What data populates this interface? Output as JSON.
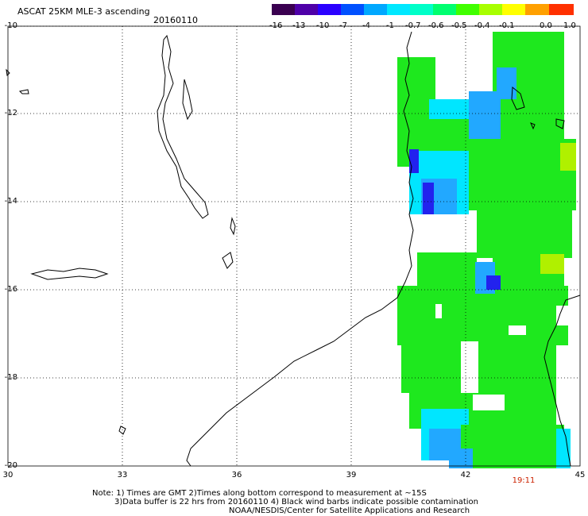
{
  "header": {
    "title": "ASCAT 25KM MLE-3 ascending",
    "date": "20160110"
  },
  "colorbar": {
    "labels": [
      "-16",
      "-13",
      "-10",
      "-7",
      "-4",
      "-1",
      "-0.7",
      "-0.6",
      "-0.5",
      "-0.4",
      "-0.1",
      "0.0",
      "1.0"
    ],
    "colors": [
      "#3a0050",
      "#4e00a8",
      "#2a00ff",
      "#0050ff",
      "#00a8ff",
      "#00e8ff",
      "#00ffc8",
      "#00ff70",
      "#40ff00",
      "#a8ff00",
      "#ffff00",
      "#ffa000",
      "#ff3000"
    ]
  },
  "axes": {
    "lat_labels": [
      "-10",
      "-12",
      "-14",
      "-16",
      "-18",
      "-20"
    ],
    "lon_labels": [
      "30",
      "33",
      "36",
      "39",
      "42",
      "45"
    ]
  },
  "time_label": "19:11",
  "notes": {
    "line1": "Note: 1) Times are GMT 2)Times along bottom correspond to measurement at ~15S",
    "line2": "3)Data buffer is 22 hrs from 20160110 4) Black wind barbs indicate possible contamination",
    "line3": "NOAA/NESDIS/Center for Satellite Applications and Research"
  },
  "colors": {
    "field_main": "#1ee81e",
    "field_blue": "#22a8ff",
    "field_cyan": "#00e6ff",
    "field_dark": "#2222ee",
    "field_yellowgreen": "#b0f000"
  }
}
